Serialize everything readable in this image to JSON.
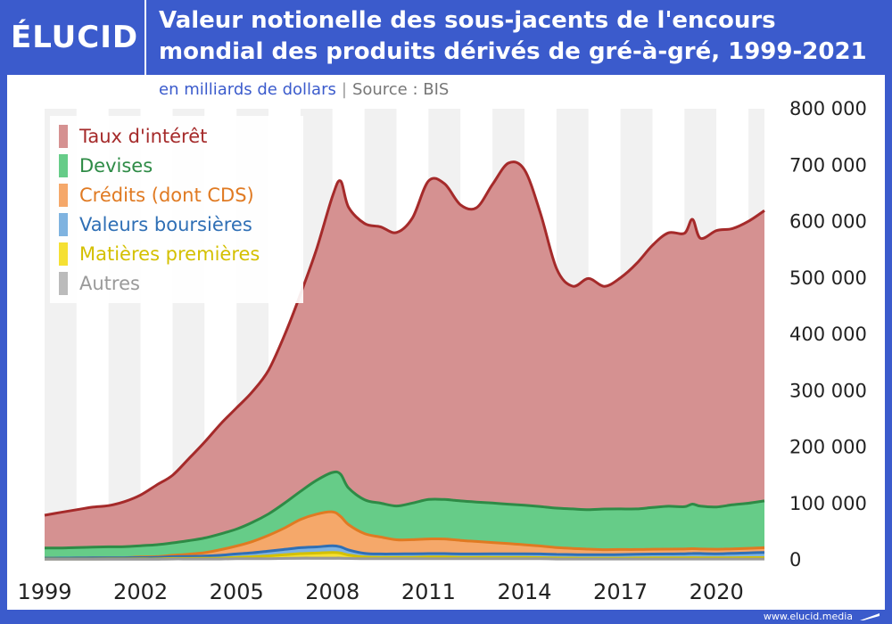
{
  "header": {
    "logo": "ÉLUCID",
    "title": "Valeur notionelle des sous-jacents de l'encours mondial des produits dérivés de gré-à-gré, 1999-2021"
  },
  "subtitle": {
    "unit": "en milliards de dollars",
    "separator": "|",
    "source": "Source : BIS"
  },
  "footer": {
    "site": "www.elucid.media"
  },
  "colors": {
    "background": "#3b5bcc",
    "taux_fill": "#d59191",
    "taux_line": "#a52a2a",
    "devises_fill": "#66cc88",
    "devises_line": "#2e8b46",
    "credits_fill": "#f5a86a",
    "credits_line": "#e07a22",
    "valeurs_fill": "#7fb3e0",
    "valeurs_line": "#2f6fb5",
    "matieres_fill": "#f5e033",
    "matieres_line": "#d4c000",
    "autres_fill": "#bbbbbb",
    "autres_line": "#999999"
  },
  "chart_data": {
    "type": "area",
    "stacked": true,
    "x": [
      1999.0,
      1999.5,
      2000.0,
      2000.5,
      2001.0,
      2001.5,
      2002.0,
      2002.5,
      2003.0,
      2003.5,
      2004.0,
      2004.5,
      2005.0,
      2005.5,
      2006.0,
      2006.5,
      2007.0,
      2007.5,
      2008.0,
      2008.25,
      2008.5,
      2009.0,
      2009.5,
      2010.0,
      2010.5,
      2011.0,
      2011.5,
      2012.0,
      2012.5,
      2013.0,
      2013.5,
      2014.0,
      2014.5,
      2015.0,
      2015.5,
      2016.0,
      2016.5,
      2017.0,
      2017.5,
      2018.0,
      2018.5,
      2019.0,
      2019.25,
      2019.5,
      2020.0,
      2020.5,
      2021.0,
      2021.5
    ],
    "series": [
      {
        "name": "Autres",
        "key": "autres",
        "values": [
          1000,
          1000,
          1000,
          1000,
          1000,
          1000,
          1000,
          1000,
          1500,
          1500,
          1500,
          1500,
          2000,
          2000,
          2000,
          2500,
          3000,
          3000,
          3000,
          3000,
          2500,
          2000,
          2000,
          2000,
          2000,
          2000,
          2000,
          2000,
          2000,
          2000,
          2000,
          2000,
          2000,
          1500,
          1500,
          1500,
          1500,
          1500,
          1500,
          1500,
          1500,
          1500,
          1500,
          1500,
          1500,
          1500,
          1500,
          1500
        ]
      },
      {
        "name": "Matières premières",
        "key": "matieres",
        "values": [
          500,
          500,
          500,
          500,
          600,
          600,
          700,
          700,
          1000,
          1000,
          1200,
          1500,
          2500,
          3500,
          5000,
          6500,
          8000,
          9000,
          10000,
          9000,
          6000,
          3000,
          2500,
          2500,
          2500,
          3000,
          3000,
          2500,
          2500,
          2500,
          2300,
          2200,
          2000,
          1800,
          1600,
          1500,
          1500,
          1500,
          1800,
          2000,
          2000,
          2200,
          2300,
          2200,
          2000,
          2200,
          2400,
          2500
        ]
      },
      {
        "name": "Valeurs boursières",
        "key": "valeurs",
        "values": [
          1500,
          1600,
          1800,
          1900,
          2000,
          2100,
          2300,
          2500,
          3000,
          3500,
          4000,
          5000,
          6000,
          7000,
          8500,
          9500,
          10500,
          11000,
          12000,
          11000,
          9000,
          6500,
          6000,
          6000,
          6200,
          6000,
          6000,
          6000,
          6000,
          6200,
          6400,
          6500,
          6500,
          6400,
          6200,
          6000,
          6100,
          6300,
          6500,
          6800,
          7000,
          7000,
          7500,
          7500,
          7300,
          7800,
          8500,
          9000
        ]
      },
      {
        "name": "Crédits (dont CDS)",
        "key": "credits",
        "values": [
          0,
          0,
          0,
          0,
          0,
          0,
          1000,
          1500,
          2500,
          4000,
          6000,
          10000,
          14000,
          20000,
          28000,
          38000,
          50000,
          58000,
          60000,
          54000,
          45000,
          35000,
          30000,
          25000,
          25000,
          26000,
          26000,
          24000,
          22000,
          20000,
          18000,
          16000,
          14000,
          12000,
          11000,
          10000,
          9000,
          9000,
          8500,
          8500,
          8500,
          8500,
          8500,
          8000,
          8000,
          8000,
          8000,
          8500
        ]
      },
      {
        "name": "Devises",
        "key": "devises",
        "values": [
          18000,
          18000,
          18500,
          19000,
          19500,
          19500,
          20000,
          21000,
          22000,
          24000,
          26000,
          28000,
          30000,
          34000,
          38000,
          44000,
          50000,
          60000,
          70000,
          75000,
          65000,
          60000,
          60000,
          60000,
          65000,
          70000,
          70000,
          70000,
          70000,
          70000,
          70000,
          70000,
          70000,
          70000,
          70000,
          70000,
          72000,
          72000,
          72000,
          74000,
          76000,
          75000,
          79000,
          76000,
          75000,
          78000,
          80000,
          83000
        ]
      },
      {
        "name": "Taux d'intérêt",
        "key": "taux",
        "values": [
          58000,
          63000,
          67000,
          71000,
          73000,
          80000,
          90000,
          106000,
          120000,
          145000,
          170000,
          195000,
          215000,
          232000,
          255000,
          298000,
          350000,
          410000,
          490000,
          520000,
          498000,
          490000,
          490000,
          485000,
          506000,
          565000,
          560000,
          525000,
          522000,
          565000,
          605000,
          595000,
          520000,
          425000,
          395000,
          410000,
          395000,
          410000,
          435000,
          465000,
          485000,
          485000,
          505000,
          475000,
          490000,
          490000,
          500000,
          515000
        ]
      }
    ],
    "yticks": [
      "800 000",
      "700 000",
      "600 000",
      "500 000",
      "400 000",
      "300 000",
      "200 000",
      "100 000",
      "0"
    ],
    "xticks": [
      "1999",
      "2002",
      "2005",
      "2008",
      "2011",
      "2014",
      "2017",
      "2020"
    ],
    "ylim": [
      0,
      800000
    ],
    "xlim": [
      1999,
      2021.5
    ],
    "grid": "alternating vertical bands",
    "legend_position": "top-left"
  }
}
